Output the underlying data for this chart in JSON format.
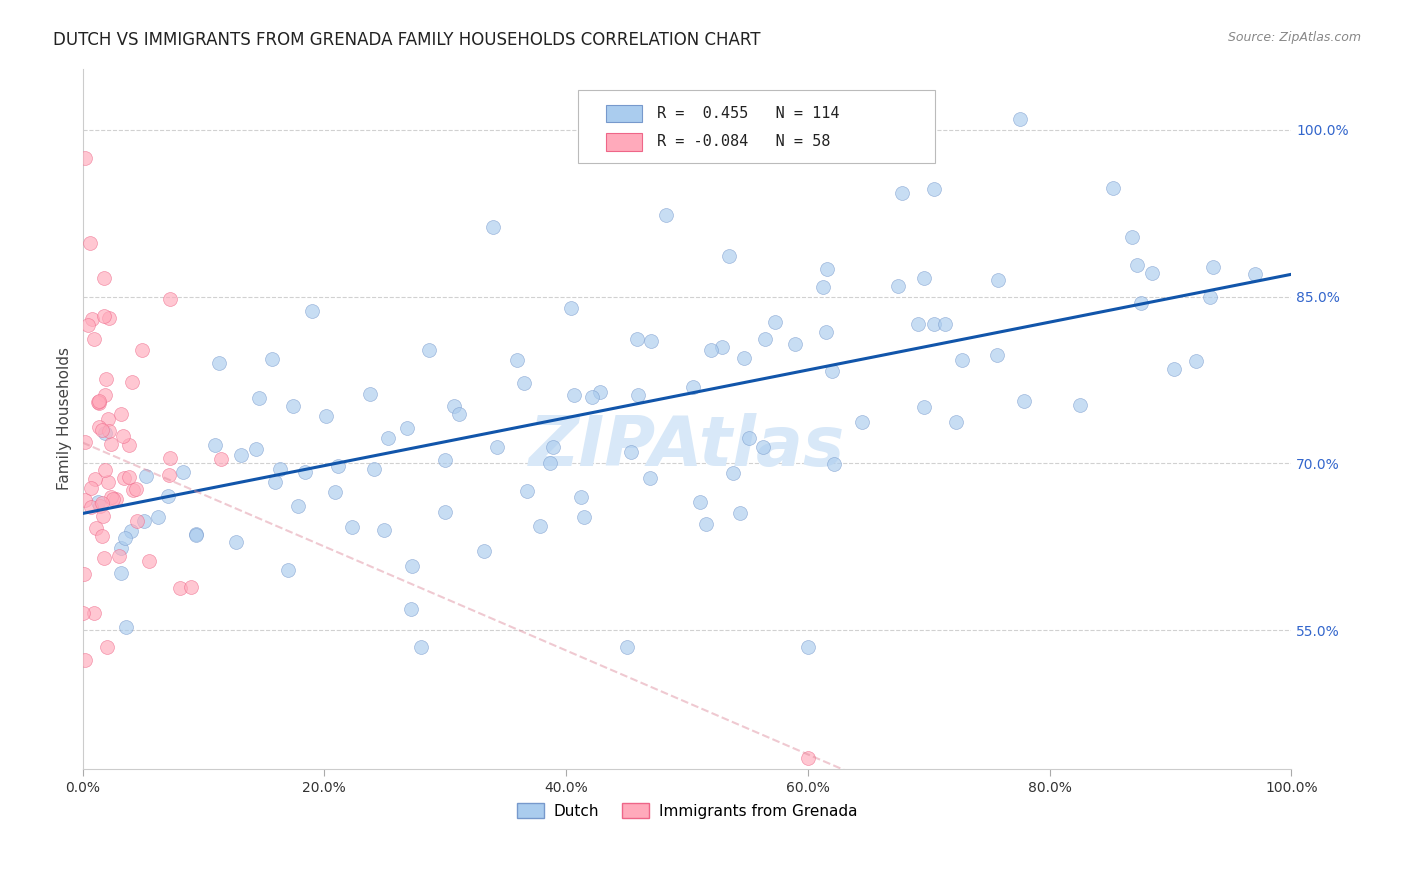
{
  "title": "DUTCH VS IMMIGRANTS FROM GRENADA FAMILY HOUSEHOLDS CORRELATION CHART",
  "source": "Source: ZipAtlas.com",
  "ylabel": "Family Households",
  "watermark": "ZIPAtlas",
  "legend_dutch_R": "0.455",
  "legend_dutch_N": "114",
  "legend_grenada_R": "-0.084",
  "legend_grenada_N": "58",
  "xlim": [
    0.0,
    1.0
  ],
  "ylim": [
    0.425,
    1.055
  ],
  "xtick_labels": [
    "0.0%",
    "20.0%",
    "40.0%",
    "60.0%",
    "80.0%",
    "100.0%"
  ],
  "xtick_vals": [
    0.0,
    0.2,
    0.4,
    0.6,
    0.8,
    1.0
  ],
  "ytick_labels": [
    "55.0%",
    "70.0%",
    "85.0%",
    "100.0%"
  ],
  "ytick_vals": [
    0.55,
    0.7,
    0.85,
    1.0
  ],
  "dutch_color": "#aaccee",
  "dutch_edge_color": "#7799cc",
  "grenada_color": "#ffaabb",
  "grenada_edge_color": "#ee6688",
  "trend_dutch_color": "#1155aa",
  "trend_grenada_color": "#dd8899",
  "background_color": "#ffffff",
  "grid_color": "#cccccc",
  "title_fontsize": 12,
  "axis_label_fontsize": 11,
  "tick_fontsize": 10,
  "right_ytick_color": "#3366cc",
  "watermark_color": "#d8e8f8",
  "watermark_fontsize": 50,
  "dutch_seed": 42,
  "grenada_seed": 7
}
